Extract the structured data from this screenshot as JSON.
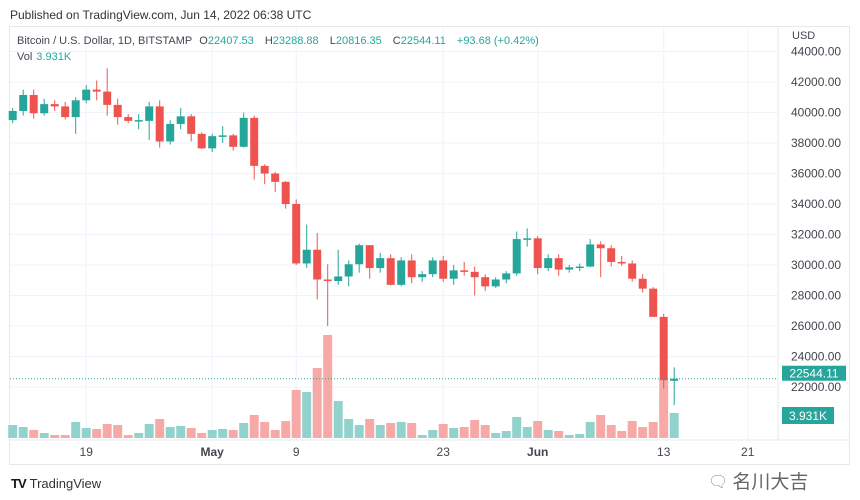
{
  "published": "Published on TradingView.com, Jun 14, 2022 06:38 UTC",
  "legend": {
    "symbol": "Bitcoin / U.S. Dollar, 1D, BITSTAMP",
    "o_label": "O",
    "o": "22407.53",
    "h_label": "H",
    "h": "23288.88",
    "l_label": "L",
    "l": "20816.35",
    "c_label": "C",
    "c": "22544.11",
    "change": "+93.68 (+0.42%)",
    "vol_label": "Vol",
    "vol": "3.931K"
  },
  "footer": {
    "brand": "TradingView"
  },
  "watermark": "名川大吉",
  "colors": {
    "up": "#26a69a",
    "down": "#ef5350",
    "up_vol": "#92d2cc",
    "down_vol": "#f7a9a7"
  },
  "chart_data": {
    "type": "candlestick",
    "title": "Bitcoin / U.S. Dollar, 1D, BITSTAMP",
    "currency_label": "USD",
    "ylim": [
      19000,
      45000
    ],
    "y_ticks": [
      "44000.00",
      "42000.00",
      "40000.00",
      "38000.00",
      "36000.00",
      "34000.00",
      "32000.00",
      "30000.00",
      "28000.00",
      "26000.00",
      "24000.00",
      "22000.00"
    ],
    "x_ticks": [
      {
        "label": "19",
        "index": 7
      },
      {
        "label": "May",
        "index": 19
      },
      {
        "label": "9",
        "index": 27
      },
      {
        "label": "23",
        "index": 41
      },
      {
        "label": "Jun",
        "index": 50
      },
      {
        "label": "13",
        "index": 62
      },
      {
        "label": "21",
        "index": 70
      }
    ],
    "last_price_label": "22544.11",
    "last_price": 22544.11,
    "last_volume_label": "3.931K",
    "columns": [
      "date",
      "open",
      "high",
      "low",
      "close",
      "volume_k"
    ],
    "candles": [
      [
        "2022-04-12",
        39500,
        40300,
        39300,
        40100,
        2.04
      ],
      [
        "2022-04-13",
        40100,
        41500,
        39800,
        41150,
        1.73
      ],
      [
        "2022-04-14",
        41150,
        41500,
        39600,
        39950,
        1.26
      ],
      [
        "2022-04-15",
        39950,
        40900,
        39800,
        40550,
        0.79
      ],
      [
        "2022-04-16",
        40550,
        40800,
        40100,
        40400,
        0.47
      ],
      [
        "2022-04-17",
        40400,
        40700,
        39550,
        39700,
        0.47
      ],
      [
        "2022-04-18",
        39700,
        41000,
        38600,
        40800,
        2.52
      ],
      [
        "2022-04-19",
        40800,
        41800,
        40600,
        41500,
        1.57
      ],
      [
        "2022-04-20",
        41500,
        42100,
        40800,
        41370,
        1.42
      ],
      [
        "2022-04-21",
        41370,
        42900,
        39800,
        40500,
        2.2
      ],
      [
        "2022-04-22",
        40500,
        40900,
        39200,
        39700,
        2.04
      ],
      [
        "2022-04-23",
        39700,
        39900,
        39300,
        39450,
        0.47
      ],
      [
        "2022-04-24",
        39450,
        39900,
        38900,
        39500,
        0.79
      ],
      [
        "2022-04-25",
        39450,
        40700,
        38200,
        40400,
        2.2
      ],
      [
        "2022-04-26",
        40400,
        40800,
        37700,
        38100,
        2.99
      ],
      [
        "2022-04-27",
        38100,
        39500,
        37900,
        39250,
        1.73
      ],
      [
        "2022-04-28",
        39250,
        40300,
        38900,
        39750,
        1.89
      ],
      [
        "2022-04-29",
        39750,
        39900,
        38100,
        38600,
        1.57
      ],
      [
        "2022-04-30",
        38600,
        38700,
        37600,
        37650,
        0.79
      ],
      [
        "2022-05-01",
        37650,
        38600,
        37400,
        38450,
        1.26
      ],
      [
        "2022-05-02",
        38450,
        39100,
        38000,
        38500,
        1.42
      ],
      [
        "2022-05-03",
        38500,
        38600,
        37500,
        37750,
        1.26
      ],
      [
        "2022-05-04",
        37750,
        40000,
        37700,
        39650,
        2.36
      ],
      [
        "2022-05-05",
        39650,
        39800,
        35600,
        36500,
        3.62
      ],
      [
        "2022-05-06",
        36500,
        36600,
        35300,
        36000,
        2.52
      ],
      [
        "2022-05-07",
        36000,
        36100,
        34800,
        35450,
        1.26
      ],
      [
        "2022-05-08",
        35450,
        35500,
        33700,
        34000,
        2.67
      ],
      [
        "2022-05-09",
        34000,
        34300,
        30000,
        30100,
        7.55
      ],
      [
        "2022-05-10",
        30100,
        32650,
        29800,
        31000,
        7.23
      ],
      [
        "2022-05-11",
        31000,
        32100,
        27750,
        29050,
        11.0
      ],
      [
        "2022-05-12",
        29050,
        30050,
        26000,
        28950,
        16.2
      ],
      [
        "2022-05-13",
        28950,
        31000,
        28700,
        29250,
        5.82
      ],
      [
        "2022-05-14",
        29250,
        30300,
        28600,
        30050,
        2.99
      ],
      [
        "2022-05-15",
        30050,
        31400,
        29500,
        31300,
        2.04
      ],
      [
        "2022-05-16",
        31300,
        31300,
        29100,
        29800,
        2.99
      ],
      [
        "2022-05-17",
        29800,
        30800,
        29500,
        30450,
        2.04
      ],
      [
        "2022-05-18",
        30450,
        30700,
        28650,
        28700,
        2.36
      ],
      [
        "2022-05-19",
        28700,
        30500,
        28600,
        30300,
        2.52
      ],
      [
        "2022-05-20",
        30300,
        30700,
        28800,
        29200,
        2.36
      ],
      [
        "2022-05-21",
        29200,
        29600,
        28900,
        29400,
        0.47
      ],
      [
        "2022-05-22",
        29400,
        30500,
        29200,
        30300,
        1.26
      ],
      [
        "2022-05-23",
        30300,
        30600,
        28900,
        29100,
        2.2
      ],
      [
        "2022-05-24",
        29100,
        30000,
        28700,
        29650,
        1.57
      ],
      [
        "2022-05-25",
        29650,
        30200,
        29300,
        29550,
        1.73
      ],
      [
        "2022-05-26",
        29550,
        29900,
        28000,
        29200,
        2.83
      ],
      [
        "2022-05-27",
        29200,
        29400,
        28300,
        28600,
        2.04
      ],
      [
        "2022-05-28",
        28600,
        29200,
        28500,
        29050,
        0.79
      ],
      [
        "2022-05-29",
        29050,
        29600,
        28800,
        29450,
        1.1
      ],
      [
        "2022-05-30",
        29450,
        32200,
        29300,
        31700,
        3.3
      ],
      [
        "2022-05-31",
        31700,
        32400,
        31200,
        31750,
        1.73
      ],
      [
        "2022-06-01",
        31750,
        31900,
        29400,
        29800,
        2.67
      ],
      [
        "2022-06-02",
        29800,
        30700,
        29600,
        30450,
        1.26
      ],
      [
        "2022-06-03",
        30450,
        30700,
        29300,
        29700,
        1.1
      ],
      [
        "2022-06-04",
        29700,
        30000,
        29500,
        29850,
        0.47
      ],
      [
        "2022-06-05",
        29850,
        30100,
        29600,
        29900,
        0.63
      ],
      [
        "2022-06-06",
        29900,
        31700,
        29850,
        31350,
        2.52
      ],
      [
        "2022-06-07",
        31350,
        31550,
        29200,
        31100,
        3.62
      ],
      [
        "2022-06-08",
        31100,
        31300,
        29900,
        30200,
        2.04
      ],
      [
        "2022-06-09",
        30200,
        30600,
        29950,
        30100,
        1.1
      ],
      [
        "2022-06-10",
        30100,
        30300,
        28900,
        29100,
        2.67
      ],
      [
        "2022-06-11",
        29100,
        29400,
        28200,
        28450,
        1.73
      ],
      [
        "2022-06-12",
        28450,
        28550,
        26600,
        26600,
        2.52
      ],
      [
        "2022-06-13",
        26600,
        26800,
        21900,
        22450,
        9.12
      ],
      [
        "2022-06-14",
        22407.53,
        23288.88,
        20816.35,
        22544.11,
        3.931
      ]
    ]
  }
}
